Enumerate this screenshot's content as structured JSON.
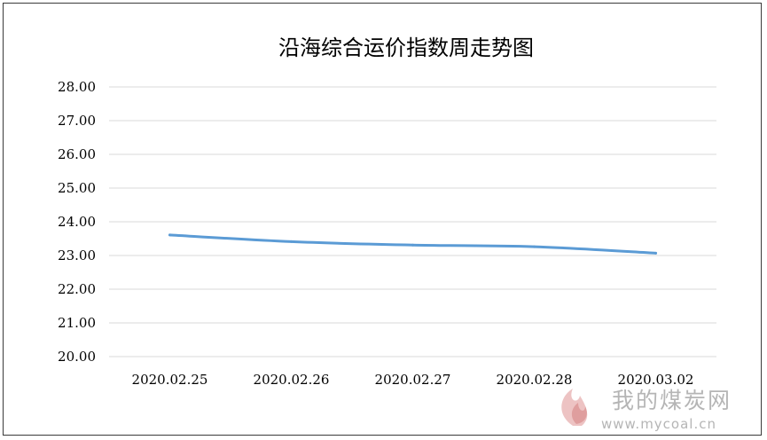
{
  "chart_data": {
    "type": "line",
    "title": "沿海综合运价指数周走势图",
    "xlabel": "",
    "ylabel": "",
    "categories": [
      "2020.02.25",
      "2020.02.26",
      "2020.02.27",
      "2020.02.28",
      "2020.03.02"
    ],
    "series": [
      {
        "values": [
          23.61,
          23.41,
          23.31,
          23.26,
          23.07
        ],
        "color": "#5b9bd5"
      }
    ],
    "ylim": [
      20,
      28
    ],
    "yticks": [
      "20.00",
      "21.00",
      "22.00",
      "23.00",
      "24.00",
      "25.00",
      "26.00",
      "27.00",
      "28.00"
    ],
    "grid": true,
    "legend": "none"
  },
  "watermark": {
    "main": "我的煤炭网",
    "url": "www.mycoal.cn"
  },
  "colors": {
    "line": "#5b9bd5",
    "grid": "#d9d9d9",
    "watermark": "#b5b5b5",
    "flame": "#e8b4b4"
  }
}
